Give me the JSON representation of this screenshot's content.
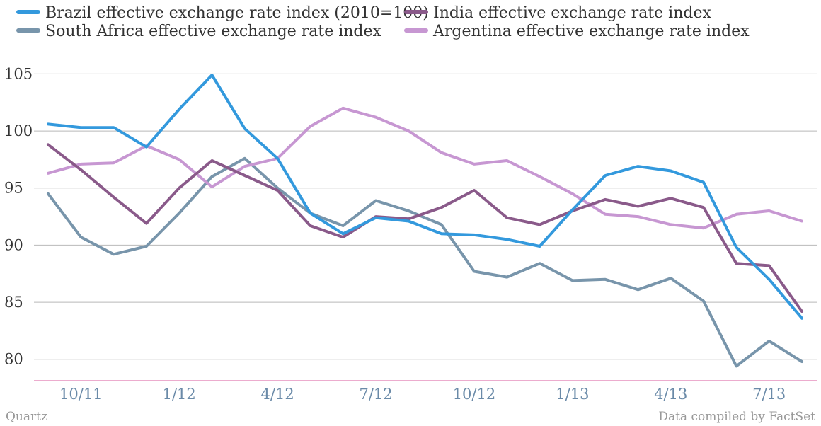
{
  "chart_data": {
    "type": "line",
    "x": [
      "9/11",
      "10/11",
      "11/11",
      "12/11",
      "1/12",
      "2/12",
      "3/12",
      "4/12",
      "5/12",
      "6/12",
      "7/12",
      "8/12",
      "9/12",
      "10/12",
      "11/12",
      "12/12",
      "1/13",
      "2/13",
      "3/13",
      "4/13",
      "5/13",
      "6/13",
      "7/13",
      "8/13"
    ],
    "x_tick_labels": [
      "10/11",
      "1/12",
      "4/12",
      "7/12",
      "10/12",
      "1/13",
      "4/13",
      "7/13"
    ],
    "x_tick_categories": [
      "10/11",
      "1/12",
      "4/12",
      "7/12",
      "10/12",
      "1/13",
      "4/13",
      "7/13"
    ],
    "y_ticks": [
      80,
      85,
      90,
      95,
      100,
      105
    ],
    "ylim": [
      78,
      108
    ],
    "grid": true,
    "legend_position": "top",
    "series": [
      {
        "name": "Brazil effective exchange rate index (2010=100)",
        "color": "#3399dd",
        "values": [
          100.6,
          100.3,
          100.3,
          98.6,
          101.9,
          104.9,
          100.2,
          97.6,
          92.8,
          91.0,
          92.4,
          92.1,
          91.0,
          90.9,
          90.5,
          89.9,
          93.1,
          96.1,
          96.9,
          96.5,
          95.5,
          89.8,
          87.0,
          83.6
        ]
      },
      {
        "name": "India effective exchange rate index",
        "color": "#8a5a8a",
        "values": [
          98.8,
          96.6,
          94.2,
          91.9,
          95.0,
          97.4,
          96.1,
          94.8,
          91.7,
          90.7,
          92.5,
          92.3,
          93.3,
          94.8,
          92.4,
          91.8,
          93.0,
          94.0,
          93.4,
          94.1,
          93.3,
          88.4,
          88.2,
          84.2
        ]
      },
      {
        "name": "South Africa effective exchange rate index",
        "color": "#7895ab",
        "values": [
          94.5,
          90.7,
          89.2,
          89.9,
          92.8,
          96.0,
          97.6,
          95.0,
          92.8,
          91.7,
          93.9,
          93.0,
          91.8,
          87.7,
          87.2,
          88.4,
          86.9,
          87.0,
          86.1,
          87.1,
          85.1,
          79.4,
          81.6,
          79.8
        ]
      },
      {
        "name": "Argentina effective exchange rate index",
        "color": "#c797d2",
        "values": [
          96.3,
          97.1,
          97.2,
          98.7,
          97.5,
          95.1,
          96.9,
          97.6,
          100.4,
          102.0,
          101.2,
          100.0,
          98.1,
          97.1,
          97.4,
          96.0,
          94.5,
          92.7,
          92.5,
          91.8,
          91.5,
          92.7,
          93.0,
          92.1
        ]
      }
    ]
  },
  "footer": {
    "source_left": "Quartz",
    "source_right": "Data compiled by FactSet"
  }
}
